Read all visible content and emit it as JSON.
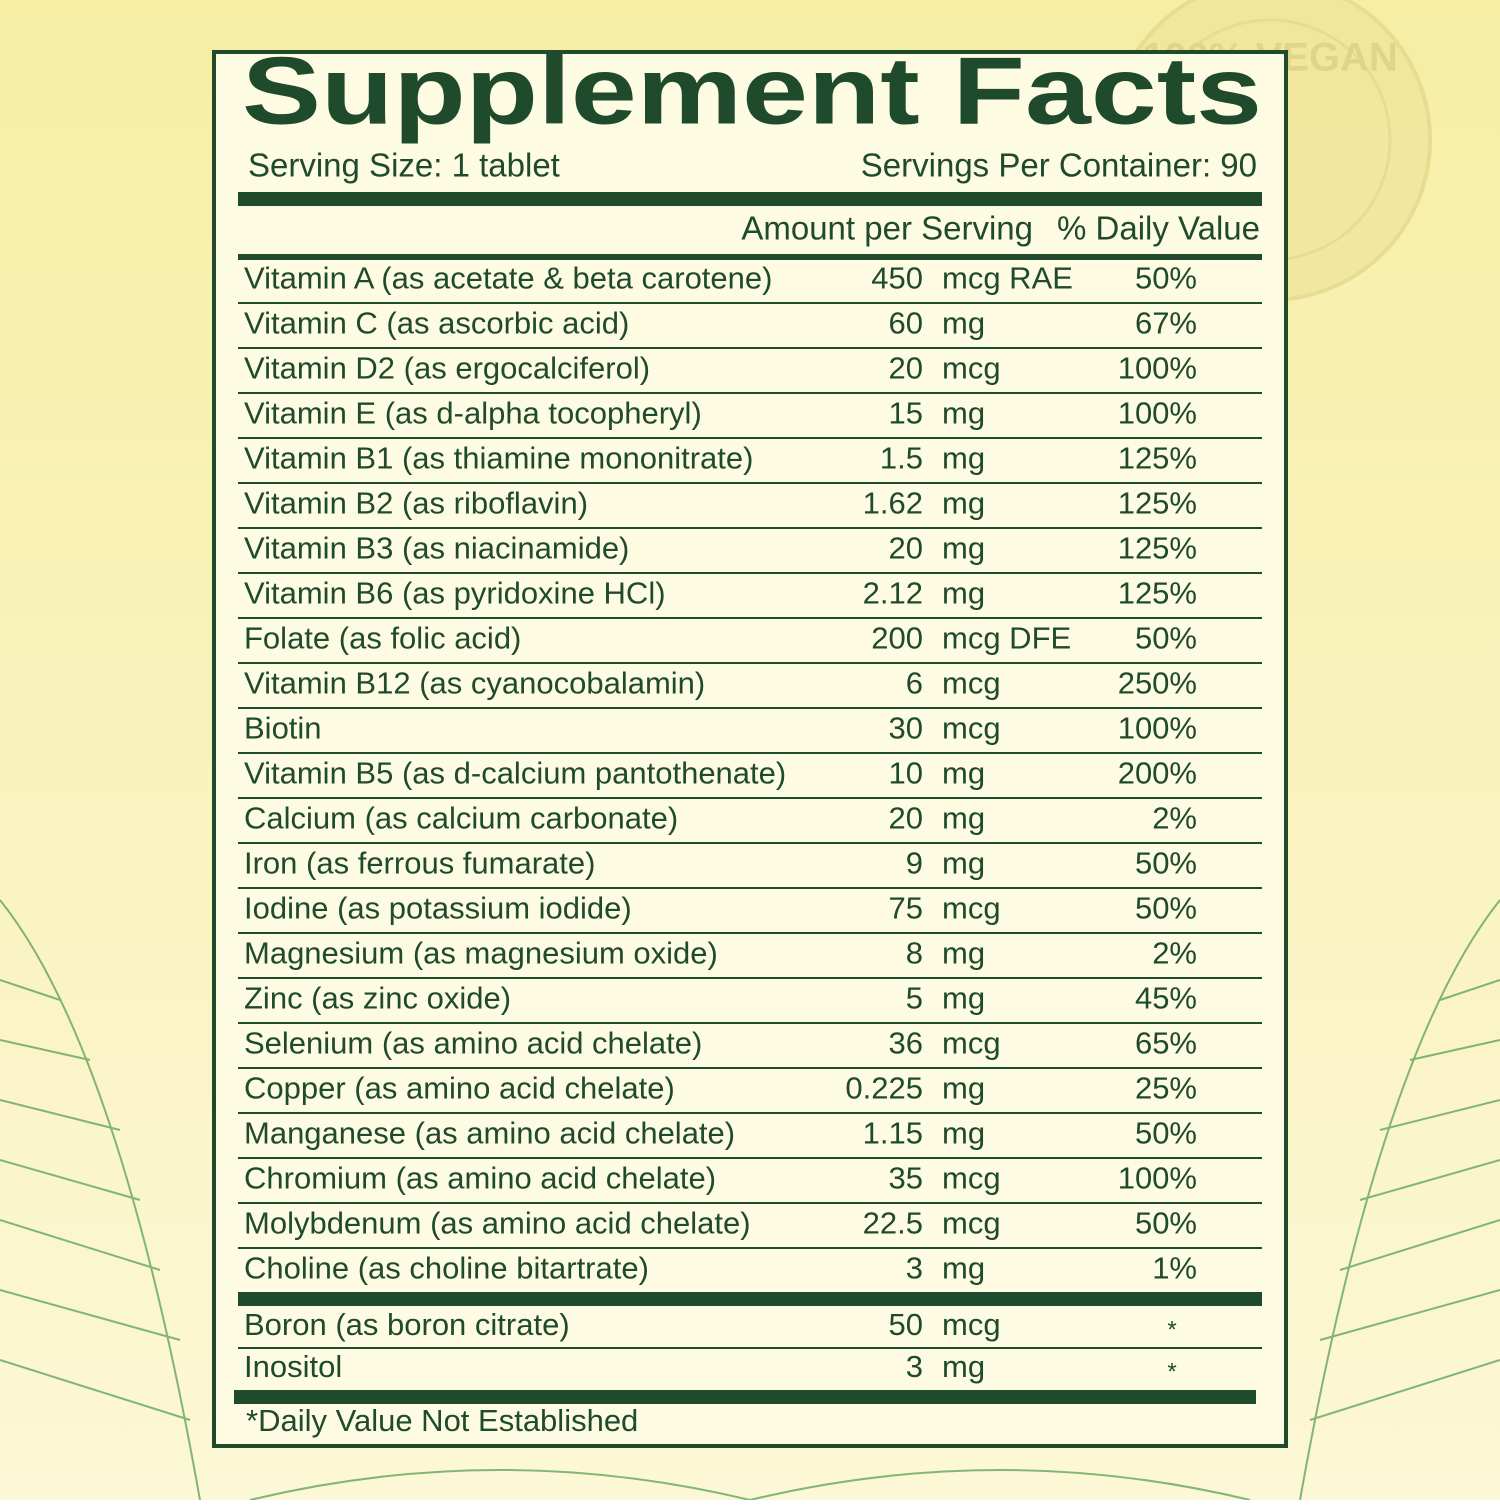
{
  "stamp": "100% VEGAN",
  "header": {
    "title": "Supplement Facts",
    "serving_size": "Serving Size: 1 tablet",
    "servings_per_container": "Servings Per Container: 90"
  },
  "table": {
    "columns": [
      "Amount per Serving",
      "% Daily Value"
    ],
    "rows": [
      [
        "Vitamin A (as acetate & beta carotene)",
        "450",
        "mcg RAE",
        "50%"
      ],
      [
        "Vitamin C (as ascorbic acid)",
        "60",
        "mg",
        "67%"
      ],
      [
        "Vitamin D2 (as ergocalciferol)",
        "20",
        "mcg",
        "100%"
      ],
      [
        "Vitamin E (as d-alpha tocopheryl)",
        "15",
        "mg",
        "100%"
      ],
      [
        "Vitamin B1 (as thiamine mononitrate)",
        "1.5",
        "mg",
        "125%"
      ],
      [
        "Vitamin B2 (as riboflavin)",
        "1.62",
        "mg",
        "125%"
      ],
      [
        "Vitamin B3 (as niacinamide)",
        "20",
        "mg",
        "125%"
      ],
      [
        "Vitamin B6 (as pyridoxine HCl)",
        "2.12",
        "mg",
        "125%"
      ],
      [
        "Folate (as folic acid)",
        "200",
        "mcg DFE",
        "50%"
      ],
      [
        "Vitamin B12 (as cyanocobalamin)",
        "6",
        "mcg",
        "250%"
      ],
      [
        "Biotin",
        "30",
        "mcg",
        "100%"
      ],
      [
        "Vitamin B5 (as d-calcium pantothenate)",
        "10",
        "mg",
        "200%"
      ],
      [
        "Calcium (as calcium carbonate)",
        "20",
        "mg",
        "2%"
      ],
      [
        "Iron (as ferrous fumarate)",
        "9",
        "mg",
        "50%"
      ],
      [
        "Iodine (as potassium iodide)",
        "75",
        "mcg",
        "50%"
      ],
      [
        "Magnesium (as magnesium oxide)",
        "8",
        "mg",
        "2%"
      ],
      [
        "Zinc (as zinc oxide)",
        "5",
        "mg",
        "45%"
      ],
      [
        "Selenium (as amino acid chelate)",
        "36",
        "mcg",
        "65%"
      ],
      [
        "Copper (as amino acid chelate)",
        "0.225",
        "mg",
        "25%"
      ],
      [
        "Manganese (as amino acid chelate)",
        "1.15",
        "mg",
        "50%"
      ],
      [
        "Chromium (as amino acid chelate)",
        "35",
        "mcg",
        "100%"
      ],
      [
        "Molybdenum (as amino acid chelate)",
        "22.5",
        "mcg",
        "50%"
      ],
      [
        "Choline (as choline bitartrate)",
        "3",
        "mg",
        "1%"
      ]
    ],
    "other_rows": [
      [
        "Boron (as boron citrate)",
        "50",
        "mcg",
        "*"
      ],
      [
        "Inositol",
        "3",
        "mg",
        "*"
      ]
    ]
  },
  "footnote": "*Daily Value Not Established"
}
